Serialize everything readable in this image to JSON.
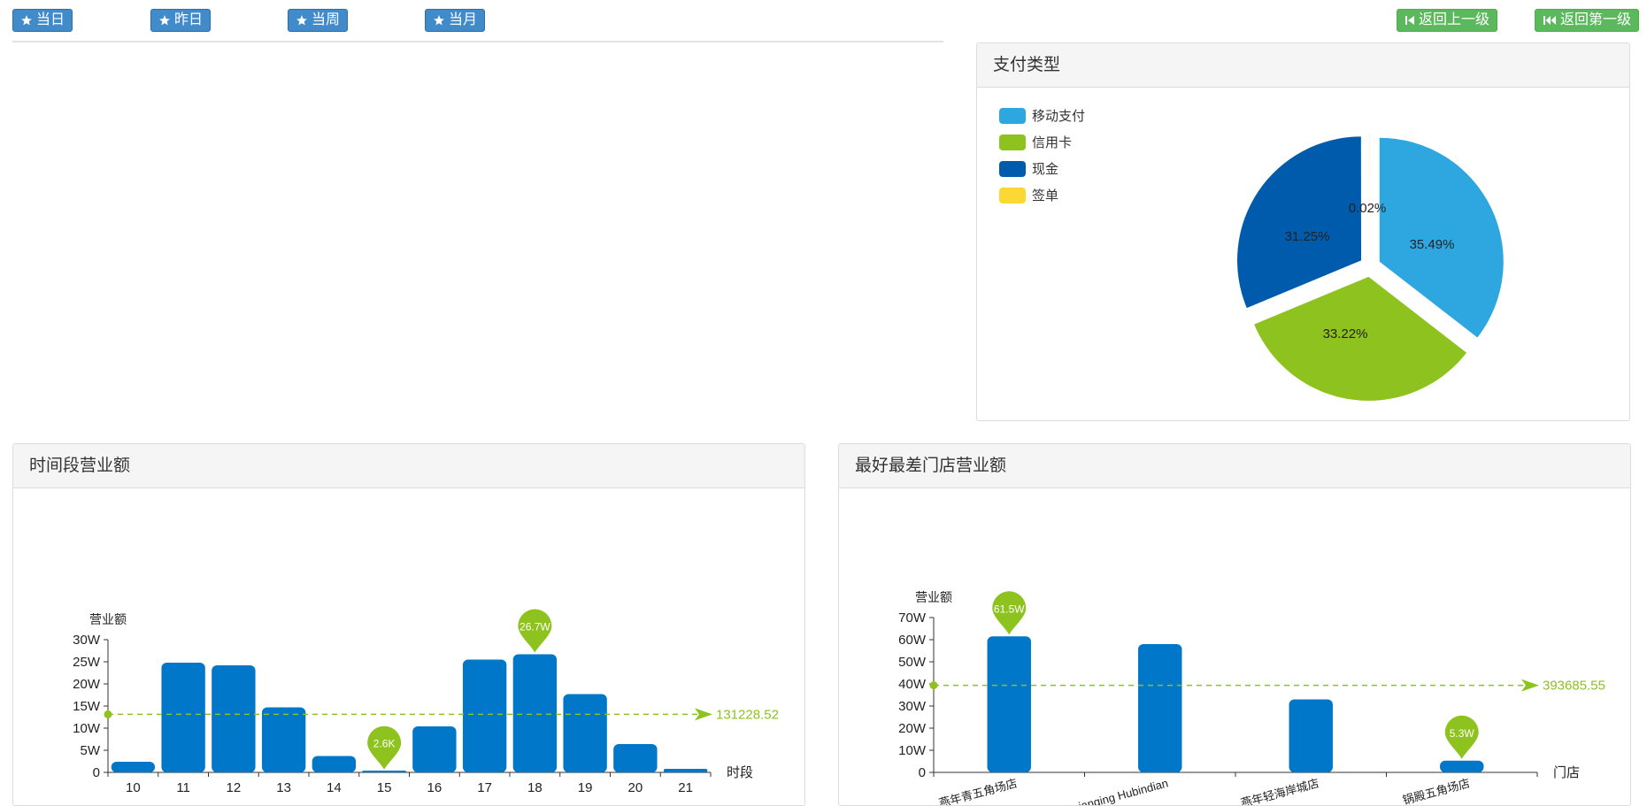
{
  "toolbar": {
    "today": "当日",
    "yesterday": "昨日",
    "this_week": "当周",
    "this_month": "当月",
    "back_one": "返回上一级",
    "back_first": "返回第一级"
  },
  "panels": {
    "payment": "支付类型",
    "hourly": "时间段营业额",
    "stores": "最好最差门店营业额"
  },
  "colors": {
    "bar": "#0077c8",
    "avg": "#8dc21f",
    "mobile": "#2ea7e0",
    "credit": "#8dc21f",
    "cash": "#005bac",
    "sign": "#fdd835"
  },
  "chart_data": [
    {
      "type": "pie",
      "title": "支付类型",
      "legend": [
        "移动支付",
        "信用卡",
        "现金",
        "签单"
      ],
      "legend_position": "top-left",
      "slices": [
        {
          "name": "移动支付",
          "value": 35.49,
          "label": "35.49%",
          "color": "#2ea7e0"
        },
        {
          "name": "信用卡",
          "value": 33.22,
          "label": "33.22%",
          "color": "#8dc21f"
        },
        {
          "name": "现金",
          "value": 31.25,
          "label": "31.25%",
          "color": "#005bac"
        },
        {
          "name": "签单",
          "value": 0.02,
          "label": "0.02%",
          "color": "#fdd835"
        }
      ]
    },
    {
      "type": "bar",
      "title": "时间段营业额",
      "xlabel": "时段",
      "ylabel": "营业额",
      "categories": [
        "10",
        "11",
        "12",
        "13",
        "14",
        "15",
        "16",
        "17",
        "18",
        "19",
        "20",
        "21"
      ],
      "values": [
        24000,
        248000,
        242000,
        147000,
        37000,
        2600,
        104000,
        255000,
        267000,
        177000,
        64000,
        8000
      ],
      "ylim": [
        0,
        300000
      ],
      "yticks": [
        0,
        50000,
        100000,
        150000,
        200000,
        250000,
        300000
      ],
      "ytick_labels": [
        "0",
        "5W",
        "10W",
        "15W",
        "20W",
        "25W",
        "30W"
      ],
      "average": 131228.52,
      "average_label": "131228.52",
      "markers": [
        {
          "index": 8,
          "label": "26.7W"
        },
        {
          "index": 5,
          "label": "2.6K"
        }
      ]
    },
    {
      "type": "bar",
      "title": "最好最差门店营业额",
      "xlabel": "门店",
      "ylabel": "营业额",
      "categories": [
        "燕年青五角场店",
        "Zhengnianqing Hubindian",
        "燕年轻海岸城店",
        "锅殿五角场店"
      ],
      "values": [
        615000,
        580000,
        330000,
        53000
      ],
      "ylim": [
        0,
        700000
      ],
      "yticks": [
        0,
        100000,
        200000,
        300000,
        400000,
        500000,
        600000,
        700000
      ],
      "ytick_labels": [
        "0",
        "10W",
        "20W",
        "30W",
        "40W",
        "50W",
        "60W",
        "70W"
      ],
      "average": 393685.55,
      "average_label": "393685.55",
      "markers": [
        {
          "index": 0,
          "label": "61.5W"
        },
        {
          "index": 3,
          "label": "5.3W"
        }
      ]
    }
  ]
}
